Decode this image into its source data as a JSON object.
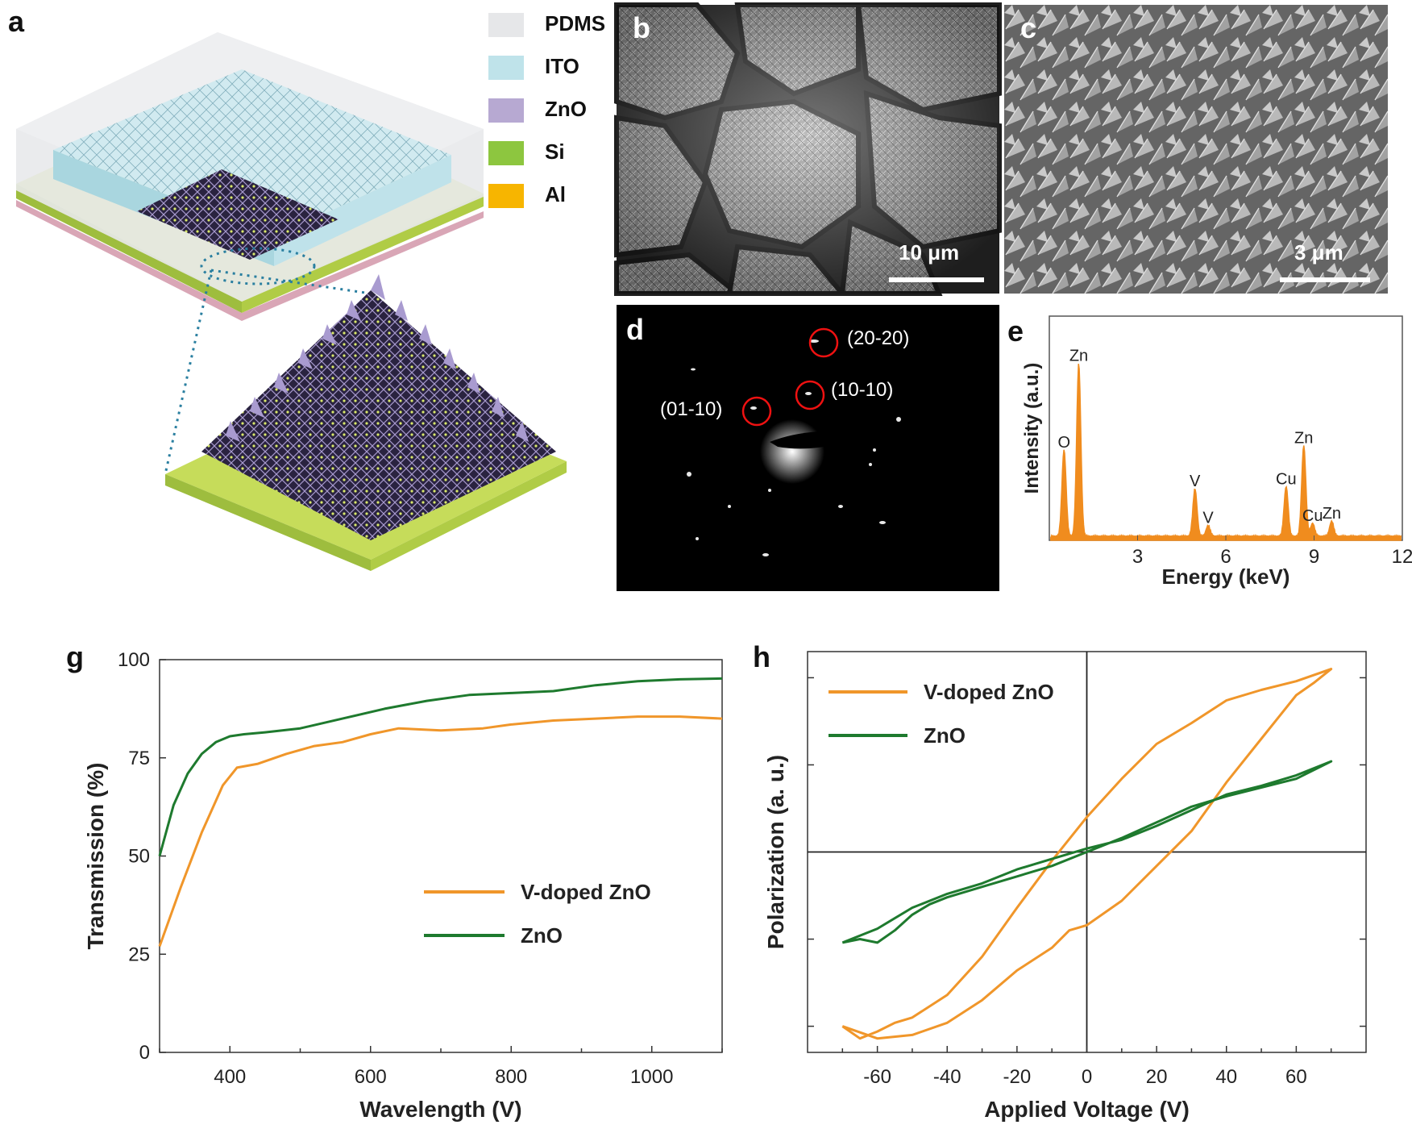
{
  "panel_labels": {
    "a": "a",
    "b": "b",
    "c": "c",
    "d": "d",
    "e": "e",
    "g": "g",
    "h": "h"
  },
  "legend_a": [
    {
      "label": "PDMS",
      "color": "#e6e7e9"
    },
    {
      "label": "ITO",
      "color": "#bfe3ea"
    },
    {
      "label": "ZnO",
      "color": "#b7a9d2"
    },
    {
      "label": "Si",
      "color": "#8dc63f"
    },
    {
      "label": "Al",
      "color": "#f7b500"
    }
  ],
  "sem_b": {
    "scale": "10 μm"
  },
  "sem_c": {
    "scale": "3 μm"
  },
  "saed_d": {
    "spots": [
      "(20-20)",
      "(10-10)",
      "(01-10)"
    ]
  },
  "chart_data": [
    {
      "id": "e",
      "type": "line",
      "xlabel": "Energy (keV)",
      "ylabel": "Intensity (a.u.)",
      "xlim": [
        0,
        12
      ],
      "xticks": [
        3,
        6,
        9,
        12
      ],
      "color": "#f08c1e",
      "peaks": [
        {
          "label": "O",
          "x": 0.5,
          "y": 0.4
        },
        {
          "label": "Zn",
          "x": 1.0,
          "y": 0.8
        },
        {
          "label": "V",
          "x": 4.95,
          "y": 0.22
        },
        {
          "label": "V",
          "x": 5.4,
          "y": 0.05
        },
        {
          "label": "Cu",
          "x": 8.05,
          "y": 0.23
        },
        {
          "label": "Zn",
          "x": 8.65,
          "y": 0.42
        },
        {
          "label": "Cu",
          "x": 8.95,
          "y": 0.06
        },
        {
          "label": "Zn",
          "x": 9.6,
          "y": 0.07
        }
      ]
    },
    {
      "id": "g",
      "type": "line",
      "xlabel": "Wavelength (V)",
      "ylabel": "Transmission (%)",
      "xlim": [
        300,
        1100
      ],
      "ylim": [
        0,
        100
      ],
      "xticks": [
        400,
        600,
        800,
        1000
      ],
      "yticks": [
        0,
        25,
        50,
        75,
        100
      ],
      "legend_position": "center-right",
      "series": [
        {
          "name": "V-doped ZnO",
          "color": "#f0962a",
          "x": [
            300,
            330,
            360,
            390,
            410,
            440,
            480,
            520,
            560,
            600,
            640,
            700,
            760,
            800,
            860,
            920,
            980,
            1040,
            1100
          ],
          "y": [
            27,
            42,
            56,
            68,
            72.5,
            73.5,
            76,
            78,
            79,
            81,
            82.5,
            82,
            82.5,
            83.5,
            84.5,
            85,
            85.5,
            85.5,
            85
          ]
        },
        {
          "name": "ZnO",
          "color": "#1e7a2e",
          "x": [
            300,
            320,
            340,
            360,
            380,
            400,
            420,
            450,
            500,
            560,
            620,
            680,
            740,
            800,
            860,
            920,
            980,
            1040,
            1100
          ],
          "y": [
            50,
            63,
            71,
            76,
            79,
            80.5,
            81,
            81.5,
            82.5,
            85,
            87.5,
            89.5,
            91,
            91.5,
            92,
            93.5,
            94.5,
            95,
            95.2
          ]
        }
      ]
    },
    {
      "id": "h",
      "type": "line",
      "xlabel": "Applied Voltage (V)",
      "ylabel": "Polarization (a. u.)",
      "xlim": [
        -80,
        80
      ],
      "ylim": [
        -1.15,
        1.15
      ],
      "xticks": [
        -60,
        -40,
        -20,
        0,
        20,
        40,
        60
      ],
      "legend_position": "top-left",
      "series": [
        {
          "name": "V-doped ZnO",
          "color": "#f0962a",
          "x": [
            -70,
            -65,
            -60,
            -55,
            -50,
            -40,
            -30,
            -20,
            -10,
            0,
            10,
            20,
            30,
            40,
            50,
            60,
            70,
            65,
            60,
            50,
            40,
            30,
            20,
            10,
            0,
            -5,
            -10,
            -20,
            -30,
            -40,
            -50,
            -60,
            -70
          ],
          "y": [
            -1.0,
            -1.07,
            -1.03,
            -0.98,
            -0.95,
            -0.82,
            -0.6,
            -0.32,
            -0.05,
            0.2,
            0.42,
            0.62,
            0.74,
            0.87,
            0.93,
            0.98,
            1.05,
            0.97,
            0.9,
            0.65,
            0.4,
            0.12,
            -0.08,
            -0.28,
            -0.42,
            -0.45,
            -0.55,
            -0.68,
            -0.85,
            -0.98,
            -1.05,
            -1.07,
            -1.0
          ]
        },
        {
          "name": "ZnO",
          "color": "#1e7a2e",
          "x": [
            -70,
            -65,
            -60,
            -55,
            -50,
            -45,
            -40,
            -30,
            -20,
            -10,
            0,
            10,
            20,
            30,
            40,
            50,
            60,
            70,
            60,
            50,
            40,
            30,
            20,
            10,
            0,
            -10,
            -20,
            -30,
            -40,
            -50,
            -60,
            -70
          ],
          "y": [
            -0.52,
            -0.5,
            -0.52,
            -0.45,
            -0.36,
            -0.3,
            -0.26,
            -0.2,
            -0.14,
            -0.08,
            0.0,
            0.08,
            0.17,
            0.26,
            0.32,
            0.37,
            0.42,
            0.52,
            0.44,
            0.38,
            0.33,
            0.24,
            0.15,
            0.07,
            0.02,
            -0.04,
            -0.1,
            -0.18,
            -0.24,
            -0.32,
            -0.44,
            -0.52
          ]
        }
      ]
    }
  ]
}
